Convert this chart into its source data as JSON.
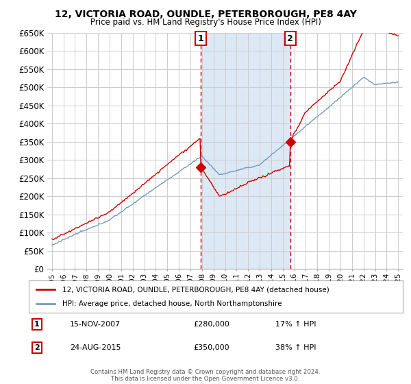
{
  "title": "12, VICTORIA ROAD, OUNDLE, PETERBOROUGH, PE8 4AY",
  "subtitle": "Price paid vs. HM Land Registry's House Price Index (HPI)",
  "legend_line1": "12, VICTORIA ROAD, OUNDLE, PETERBOROUGH, PE8 4AY (detached house)",
  "legend_line2": "HPI: Average price, detached house, North Northamptonshire",
  "sale1_date": "15-NOV-2007",
  "sale1_price": "£280,000",
  "sale1_hpi": "17% ↑ HPI",
  "sale2_date": "24-AUG-2015",
  "sale2_price": "£350,000",
  "sale2_hpi": "38% ↑ HPI",
  "footer": "Contains HM Land Registry data © Crown copyright and database right 2024.\nThis data is licensed under the Open Government Licence v3.0.",
  "red_color": "#cc0000",
  "blue_color": "#7799bb",
  "shade_color": "#dde8f5",
  "vline_color": "#cc0000",
  "sale1_x": 2007.88,
  "sale2_x": 2015.65
}
